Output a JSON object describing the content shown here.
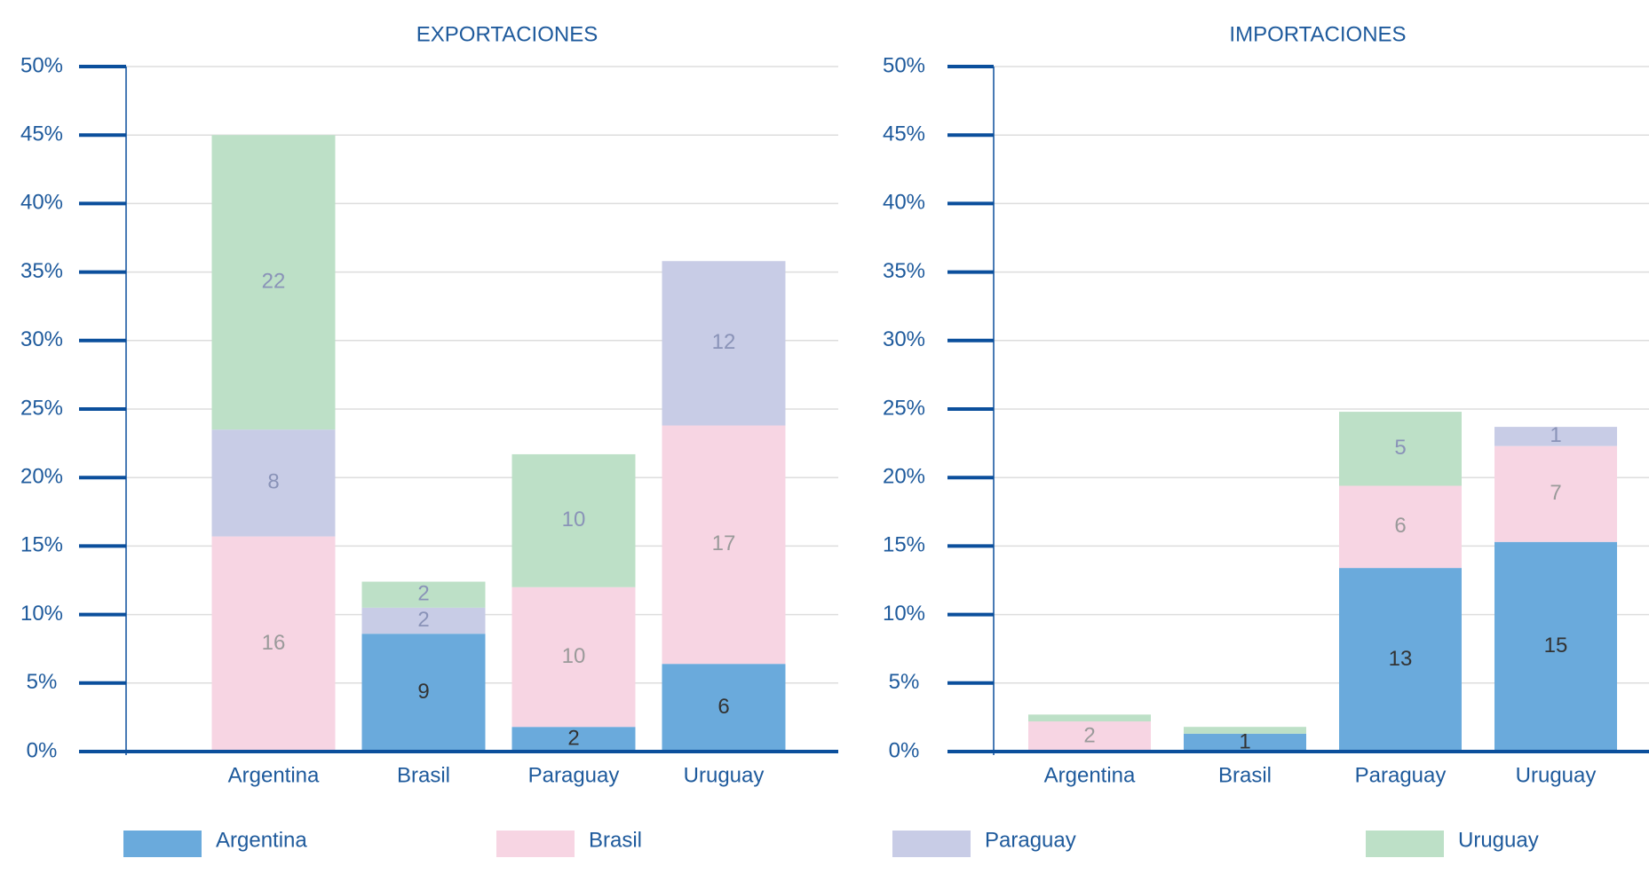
{
  "chart_data": [
    {
      "type": "bar",
      "stacked": true,
      "title": "EXPORTACIONES",
      "categories": [
        "Argentina",
        "Brasil",
        "Paraguay",
        "Uruguay"
      ],
      "ylim": [
        0,
        50
      ],
      "yticks": [
        {
          "value": 0,
          "label": "0%"
        },
        {
          "value": 5,
          "label": "5%"
        },
        {
          "value": 10,
          "label": "10%"
        },
        {
          "value": 15,
          "label": "15%"
        },
        {
          "value": 20,
          "label": "20%"
        },
        {
          "value": 25,
          "label": "25%"
        },
        {
          "value": 30,
          "label": "30%"
        },
        {
          "value": 35,
          "label": "35%"
        },
        {
          "value": 40,
          "label": "40%"
        },
        {
          "value": 45,
          "label": "45%"
        },
        {
          "value": 50,
          "label": "50%"
        }
      ],
      "grid": true,
      "series": [
        {
          "name": "Argentina",
          "color": "#6aaadc",
          "values": [
            null,
            8.6,
            1.8,
            6.4
          ],
          "value_labels": [
            null,
            "9",
            "2",
            "6"
          ]
        },
        {
          "name": "Brasil",
          "color": "#f7d5e3",
          "values": [
            15.7,
            null,
            10.2,
            17.4
          ],
          "value_labels": [
            "16",
            null,
            "10",
            "17"
          ]
        },
        {
          "name": "Paraguay",
          "color": "#c8cce6",
          "values": [
            7.8,
            1.9,
            null,
            12.0
          ],
          "value_labels": [
            "8",
            "2",
            null,
            "12"
          ]
        },
        {
          "name": "Uruguay",
          "color": "#bde0c7",
          "values": [
            21.5,
            1.9,
            9.7,
            null
          ],
          "value_labels": [
            "22",
            "2",
            "10",
            null
          ]
        }
      ]
    },
    {
      "type": "bar",
      "stacked": true,
      "title": "IMPORTACIONES",
      "categories": [
        "Argentina",
        "Brasil",
        "Paraguay",
        "Uruguay"
      ],
      "ylim": [
        0,
        50
      ],
      "yticks": [
        {
          "value": 0,
          "label": "0%"
        },
        {
          "value": 5,
          "label": "5%"
        },
        {
          "value": 10,
          "label": "10%"
        },
        {
          "value": 15,
          "label": "15%"
        },
        {
          "value": 20,
          "label": "20%"
        },
        {
          "value": 25,
          "label": "25%"
        },
        {
          "value": 30,
          "label": "30%"
        },
        {
          "value": 35,
          "label": "35%"
        },
        {
          "value": 40,
          "label": "40%"
        },
        {
          "value": 45,
          "label": "45%"
        },
        {
          "value": 50,
          "label": "50%"
        }
      ],
      "grid": true,
      "series": [
        {
          "color": "#6aaadc",
          "values": [
            null,
            1.3,
            13.4,
            15.3
          ],
          "value_labels": [
            null,
            "1",
            "13",
            "15"
          ]
        },
        {
          "color": "#f7d5e3",
          "values": [
            2.2,
            null,
            6.0,
            7.0
          ],
          "value_labels": [
            "2",
            null,
            "6",
            "7"
          ]
        },
        {
          "color": "#c8cce6",
          "values": [
            null,
            null,
            null,
            1.4
          ],
          "value_labels": [
            null,
            null,
            null,
            "1"
          ]
        },
        {
          "color": "#bde0c7",
          "values": [
            0.5,
            0.5,
            5.4,
            null
          ],
          "value_labels": [
            null,
            null,
            "5",
            null
          ]
        }
      ]
    }
  ]
}
